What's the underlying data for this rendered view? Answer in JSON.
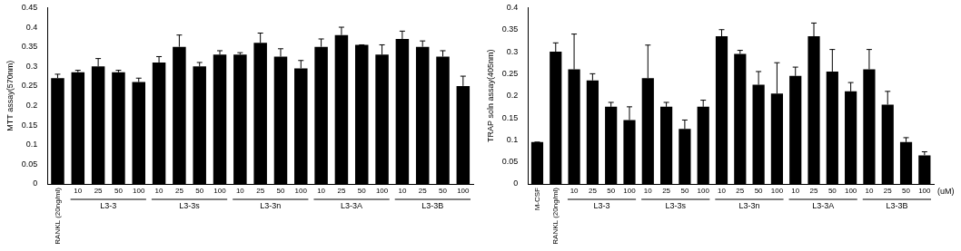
{
  "chart_data": [
    {
      "type": "bar",
      "y_label": "MTT assay(570nm)",
      "categories": [
        "RANKL (20ng/ml)",
        "10",
        "25",
        "50",
        "100",
        "10",
        "25",
        "50",
        "100",
        "10",
        "25",
        "50",
        "100",
        "10",
        "25",
        "50",
        "100",
        "10",
        "25",
        "50",
        "100"
      ],
      "groups": [
        null,
        "L3-3",
        "L3-3",
        "L3-3",
        "L3-3",
        "L3-3s",
        "L3-3s",
        "L3-3s",
        "L3-3s",
        "L3-3n",
        "L3-3n",
        "L3-3n",
        "L3-3n",
        "L3-3A",
        "L3-3A",
        "L3-3A",
        "L3-3A",
        "L3-3B",
        "L3-3B",
        "L3-3B",
        "L3-3B"
      ],
      "values": [
        0.27,
        0.285,
        0.3,
        0.285,
        0.26,
        0.31,
        0.35,
        0.3,
        0.33,
        0.33,
        0.36,
        0.325,
        0.295,
        0.35,
        0.38,
        0.355,
        0.33,
        0.37,
        0.35,
        0.325,
        0.25
      ],
      "errors": [
        0.01,
        0.005,
        0.02,
        0.005,
        0.01,
        0.015,
        0.03,
        0.01,
        0.01,
        0.005,
        0.025,
        0.02,
        0.02,
        0.02,
        0.02,
        0,
        0.025,
        0.02,
        0.015,
        0.015,
        0.025
      ],
      "color": "#000000",
      "ylim": [
        0,
        0.45
      ],
      "yticks": [
        0,
        0.05,
        0.1,
        0.15,
        0.2,
        0.25,
        0.3,
        0.35,
        0.4,
        0.45
      ],
      "grid": false
    },
    {
      "type": "bar",
      "y_label": "TRAP soln assay(405nm)",
      "x_label": "(uM)",
      "categories": [
        "M-CSF",
        "RANKL (20ng/ml)",
        "10",
        "25",
        "50",
        "100",
        "10",
        "25",
        "50",
        "100",
        "10",
        "25",
        "50",
        "100",
        "10",
        "25",
        "50",
        "100",
        "10",
        "25",
        "50",
        "100"
      ],
      "groups": [
        null,
        null,
        "L3-3",
        "L3-3",
        "L3-3",
        "L3-3",
        "L3-3s",
        "L3-3s",
        "L3-3s",
        "L3-3s",
        "L3-3n",
        "L3-3n",
        "L3-3n",
        "L3-3n",
        "L3-3A",
        "L3-3A",
        "L3-3A",
        "L3-3A",
        "L3-3B",
        "L3-3B",
        "L3-3B",
        "L3-3B"
      ],
      "values": [
        0.095,
        0.3,
        0.26,
        0.235,
        0.175,
        0.145,
        0.24,
        0.175,
        0.125,
        0.175,
        0.335,
        0.295,
        0.225,
        0.205,
        0.245,
        0.335,
        0.255,
        0.21,
        0.26,
        0.18,
        0.095,
        0.065
      ],
      "errors": [
        0,
        0.02,
        0.08,
        0.015,
        0.01,
        0.03,
        0.075,
        0.01,
        0.02,
        0.015,
        0.015,
        0.008,
        0.03,
        0.07,
        0.02,
        0.03,
        0.05,
        0.02,
        0.045,
        0.03,
        0.01,
        0.008
      ],
      "color": "#000000",
      "ylim": [
        0,
        0.4
      ],
      "yticks": [
        0,
        0.05,
        0.1,
        0.15,
        0.2,
        0.25,
        0.3,
        0.35,
        0.4
      ],
      "grid": false
    }
  ]
}
